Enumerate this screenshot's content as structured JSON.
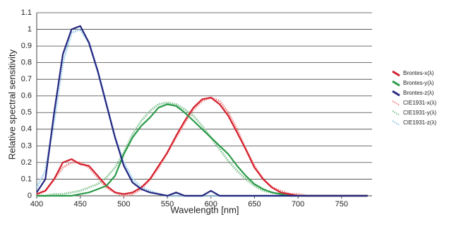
{
  "chart_data": {
    "type": "line",
    "x_label": "Wavelength [nm]",
    "y_label": "Relative spectral sensitivity",
    "x": [
      400,
      410,
      420,
      430,
      440,
      450,
      460,
      470,
      480,
      490,
      500,
      510,
      520,
      530,
      540,
      550,
      560,
      570,
      580,
      590,
      600,
      610,
      620,
      630,
      640,
      650,
      660,
      670,
      680,
      690,
      700,
      710,
      720,
      730,
      740,
      750,
      760,
      770,
      780
    ],
    "series": [
      {
        "name": "Brontes-x(λ)",
        "color": "#d4202e",
        "style": "solid",
        "values": [
          0.01,
          0.03,
          0.1,
          0.2,
          0.22,
          0.19,
          0.18,
          0.12,
          0.06,
          0.02,
          0.01,
          0.02,
          0.05,
          0.1,
          0.18,
          0.26,
          0.36,
          0.45,
          0.53,
          0.58,
          0.59,
          0.55,
          0.48,
          0.38,
          0.28,
          0.17,
          0.1,
          0.05,
          0.02,
          0.01,
          0,
          0,
          0,
          0,
          0,
          0,
          0,
          0,
          0
        ]
      },
      {
        "name": "Brontes-y(λ)",
        "color": "#2a9a48",
        "style": "solid",
        "values": [
          0,
          0,
          0,
          0,
          0,
          0.01,
          0.02,
          0.04,
          0.06,
          0.12,
          0.25,
          0.35,
          0.42,
          0.47,
          0.53,
          0.55,
          0.54,
          0.5,
          0.45,
          0.4,
          0.35,
          0.3,
          0.25,
          0.18,
          0.12,
          0.07,
          0.04,
          0.02,
          0.01,
          0,
          0,
          0,
          0,
          0,
          0,
          0,
          0,
          0,
          0
        ]
      },
      {
        "name": "Brontes-z(λ)",
        "color": "#262680",
        "style": "solid",
        "values": [
          0.02,
          0.1,
          0.5,
          0.85,
          1.0,
          1.02,
          0.92,
          0.75,
          0.55,
          0.35,
          0.18,
          0.08,
          0.04,
          0.02,
          0.01,
          0,
          0.02,
          0,
          0,
          0,
          0.03,
          0,
          0,
          0,
          0,
          0,
          0,
          0,
          0,
          0,
          0,
          0,
          0,
          0,
          0,
          0,
          0,
          0,
          0
        ]
      },
      {
        "name": "CIE1931-x(λ)",
        "color": "#f08080",
        "style": "dotted",
        "values": [
          0.01,
          0.03,
          0.1,
          0.17,
          0.2,
          0.2,
          0.17,
          0.11,
          0.05,
          0.02,
          0,
          0.01,
          0.04,
          0.1,
          0.17,
          0.26,
          0.35,
          0.44,
          0.52,
          0.57,
          0.59,
          0.57,
          0.5,
          0.4,
          0.28,
          0.18,
          0.1,
          0.05,
          0.03,
          0.01,
          0.01,
          0,
          0,
          0,
          0,
          0,
          0,
          0,
          0
        ]
      },
      {
        "name": "CIE1931-y(λ)",
        "color": "#7cc08c",
        "style": "dotted",
        "values": [
          0,
          0,
          0.01,
          0.01,
          0.02,
          0.03,
          0.05,
          0.07,
          0.11,
          0.17,
          0.26,
          0.37,
          0.45,
          0.51,
          0.55,
          0.56,
          0.55,
          0.52,
          0.48,
          0.42,
          0.35,
          0.28,
          0.21,
          0.15,
          0.1,
          0.06,
          0.03,
          0.02,
          0.01,
          0,
          0,
          0,
          0,
          0,
          0,
          0,
          0,
          0,
          0
        ]
      },
      {
        "name": "CIE1931-z(λ)",
        "color": "#8cc8e8",
        "style": "dotted",
        "values": [
          0.05,
          0.15,
          0.45,
          0.8,
          0.98,
          1.0,
          0.92,
          0.75,
          0.55,
          0.35,
          0.2,
          0.1,
          0.05,
          0.03,
          0.01,
          0,
          0,
          0,
          0,
          0,
          0,
          0,
          0,
          0,
          0,
          0,
          0,
          0,
          0,
          0,
          0,
          0,
          0,
          0,
          0,
          0,
          0,
          0,
          0
        ]
      }
    ],
    "xlim": [
      400,
      785
    ],
    "xticks": [
      400,
      450,
      500,
      550,
      600,
      650,
      700,
      750
    ],
    "ylim": [
      0,
      1.1
    ],
    "yticks": [
      0,
      0.1,
      0.2,
      0.3,
      0.4,
      0.5,
      0.6,
      0.7,
      0.8,
      0.9,
      1,
      1.1
    ],
    "grid": true,
    "legend": "right"
  }
}
